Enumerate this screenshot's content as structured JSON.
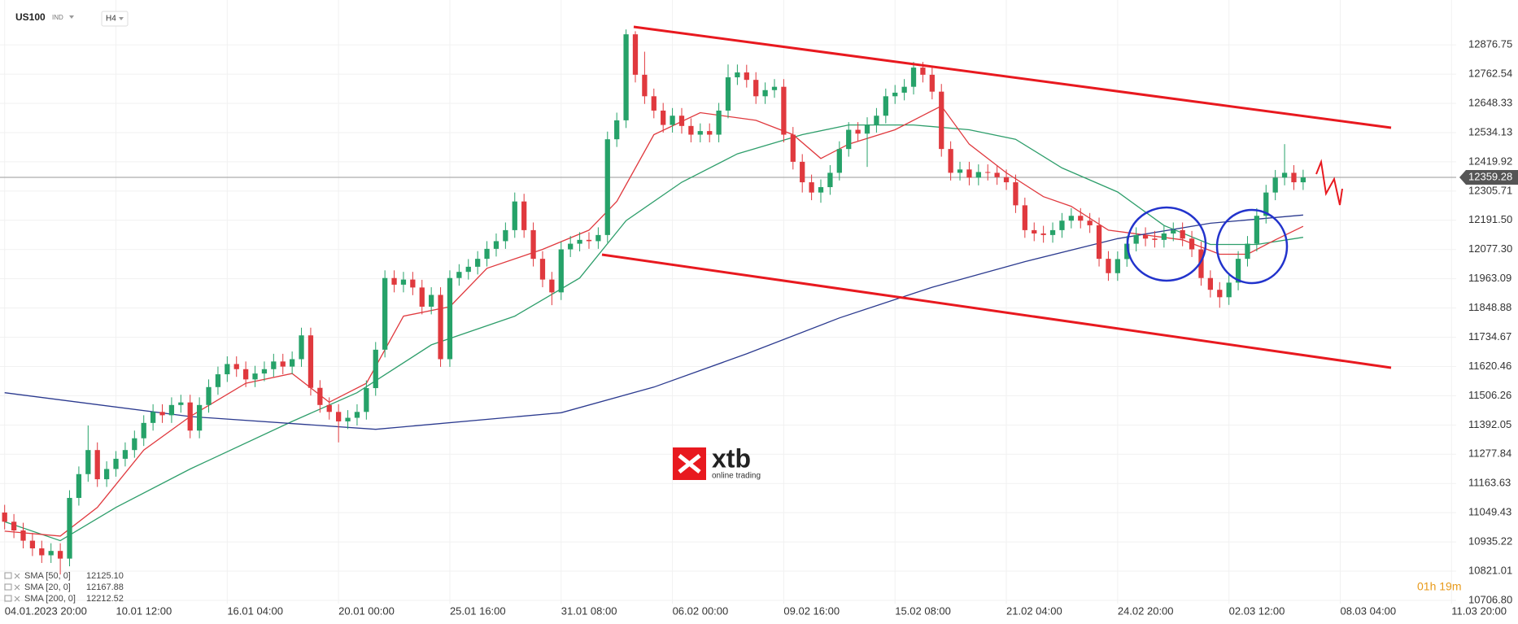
{
  "header": {
    "symbol": "US100",
    "market": "IND",
    "interval": "H4"
  },
  "logo": {
    "brand": "xtb",
    "tagline": "online trading"
  },
  "countdown": "01h 19m",
  "chart_data": {
    "type": "candlestick",
    "up_color": "#26a269",
    "down_color": "#e0393e",
    "open": [
      11050,
      11014,
      10980,
      10940,
      10910,
      10883,
      10900,
      10870,
      11107,
      11200,
      11294,
      11180,
      11220,
      11260,
      11294,
      11340,
      11400,
      11443,
      11430,
      11470,
      11480,
      11370,
      11470,
      11540,
      11590,
      11630,
      11610,
      11570,
      11593,
      11610,
      11640,
      11620,
      11649,
      11742,
      11537,
      11470,
      11443,
      11406,
      11420,
      11443,
      11536,
      11686,
      11966,
      11940,
      11960,
      11929,
      11854,
      11900,
      11649,
      11966,
      11990,
      12010,
      12041,
      12080,
      12110,
      12153,
      12265,
      12153,
      12041,
      11960,
      11910,
      12078,
      12100,
      12115,
      12110,
      12134,
      12508,
      12582,
      12918,
      12760,
      12676,
      12620,
      12564,
      12600,
      12560,
      12526,
      12540,
      12526,
      12620,
      12750,
      12769,
      12740,
      12676,
      12700,
      12713,
      12526,
      12420,
      12340,
      12300,
      12321,
      12377,
      12470,
      12545,
      12530,
      12564,
      12600,
      12676,
      12690,
      12713,
      12788,
      12760,
      12694,
      12470,
      12377,
      12390,
      12358,
      12380,
      12377,
      12360,
      12340,
      12250,
      12153,
      12140,
      12134,
      12153,
      12190,
      12209,
      12190,
      12172,
      12041,
      11985,
      12040,
      12100,
      12134,
      12120,
      12115,
      12140,
      12153,
      12120,
      12078,
      11966,
      11920,
      11891,
      11948,
      12041,
      12100,
      12209,
      12300,
      12358,
      12377,
      12340
    ],
    "high": [
      11080,
      11044,
      11010,
      10970,
      10940,
      10930,
      10930,
      11137,
      11230,
      11390,
      11324,
      11250,
      11290,
      11324,
      11370,
      11430,
      11473,
      11473,
      11500,
      11510,
      11510,
      11500,
      11570,
      11620,
      11660,
      11660,
      11640,
      11623,
      11640,
      11670,
      11670,
      11679,
      11772,
      11772,
      11567,
      11500,
      11473,
      11450,
      11473,
      11566,
      11716,
      11996,
      11996,
      11990,
      11990,
      11959,
      11930,
      11930,
      11996,
      12020,
      12040,
      12071,
      12110,
      12140,
      12183,
      12300,
      12295,
      12183,
      12071,
      11990,
      12108,
      12130,
      12145,
      12145,
      12164,
      12538,
      12612,
      12937,
      12930,
      12850,
      12706,
      12650,
      12630,
      12630,
      12590,
      12570,
      12570,
      12650,
      12800,
      12800,
      12799,
      12770,
      12730,
      12743,
      12743,
      12556,
      12450,
      12370,
      12351,
      12407,
      12500,
      12575,
      12575,
      12594,
      12630,
      12706,
      12720,
      12743,
      12810,
      12810,
      12790,
      12724,
      12500,
      12420,
      12420,
      12410,
      12410,
      12407,
      12390,
      12370,
      12280,
      12183,
      12170,
      12183,
      12220,
      12239,
      12239,
      12220,
      12202,
      12071,
      12070,
      12130,
      12164,
      12164,
      12150,
      12170,
      12183,
      12183,
      12150,
      12108,
      11996,
      11950,
      11978,
      12071,
      12130,
      12239,
      12330,
      12388,
      12489,
      12407,
      12389
    ],
    "low": [
      10984,
      10950,
      10910,
      10880,
      10853,
      10853,
      10808,
      10840,
      11077,
      11170,
      11150,
      11150,
      11190,
      11230,
      11264,
      11310,
      11370,
      11400,
      11400,
      11440,
      11340,
      11340,
      11440,
      11510,
      11560,
      11580,
      11540,
      11540,
      11563,
      11580,
      11590,
      11590,
      11619,
      11507,
      11440,
      11413,
      11324,
      11376,
      11390,
      11413,
      11506,
      11656,
      11910,
      11910,
      11899,
      11824,
      11824,
      11619,
      11619,
      11936,
      11960,
      11980,
      12011,
      12050,
      12080,
      12123,
      12123,
      12011,
      11930,
      11860,
      11880,
      12048,
      12070,
      12080,
      12080,
      12104,
      12478,
      12552,
      12730,
      12646,
      12590,
      12534,
      12534,
      12530,
      12496,
      12496,
      12496,
      12496,
      12590,
      12720,
      12710,
      12646,
      12646,
      12670,
      12496,
      12390,
      12300,
      12270,
      12260,
      12291,
      12347,
      12440,
      12500,
      12400,
      12534,
      12570,
      12646,
      12660,
      12683,
      12730,
      12664,
      12440,
      12347,
      12347,
      12328,
      12328,
      12347,
      12330,
      12310,
      12220,
      12123,
      12110,
      12104,
      12104,
      12123,
      12160,
      12160,
      12142,
      12011,
      11955,
      11955,
      12010,
      12070,
      12090,
      12085,
      12085,
      12110,
      12090,
      12048,
      11936,
      11890,
      11850,
      11861,
      11918,
      12011,
      12070,
      12179,
      12270,
      12328,
      12310,
      12310
    ],
    "close": [
      11014,
      10980,
      10940,
      10910,
      10883,
      10900,
      10870,
      11107,
      11200,
      11294,
      11180,
      11220,
      11260,
      11294,
      11340,
      11400,
      11443,
      11430,
      11470,
      11480,
      11370,
      11470,
      11540,
      11590,
      11630,
      11610,
      11570,
      11593,
      11610,
      11640,
      11620,
      11649,
      11742,
      11537,
      11470,
      11443,
      11406,
      11420,
      11443,
      11536,
      11686,
      11966,
      11940,
      11960,
      11929,
      11854,
      11900,
      11649,
      11966,
      11990,
      12010,
      12041,
      12080,
      12110,
      12153,
      12265,
      12153,
      12041,
      11960,
      11910,
      12078,
      12100,
      12115,
      12110,
      12134,
      12508,
      12582,
      12918,
      12760,
      12676,
      12620,
      12564,
      12600,
      12560,
      12526,
      12540,
      12526,
      12620,
      12750,
      12769,
      12740,
      12676,
      12700,
      12713,
      12526,
      12420,
      12340,
      12300,
      12321,
      12377,
      12470,
      12545,
      12530,
      12564,
      12600,
      12676,
      12690,
      12713,
      12788,
      12760,
      12694,
      12470,
      12377,
      12390,
      12358,
      12380,
      12377,
      12360,
      12340,
      12250,
      12153,
      12140,
      12134,
      12153,
      12190,
      12209,
      12190,
      12172,
      12041,
      11985,
      12040,
      12100,
      12134,
      12120,
      12115,
      12140,
      12153,
      12120,
      12078,
      11966,
      11920,
      11891,
      11948,
      12041,
      12100,
      12209,
      12300,
      12358,
      12377,
      12340,
      12359
    ],
    "series": [
      {
        "name": "SMA [50, 0]",
        "color": "#2e9e6b",
        "last": {
          "value": 12125.1,
          "label": "12125.10"
        },
        "x": [
          0,
          6,
          12,
          20,
          31,
          38,
          46,
          55,
          62,
          67,
          73,
          79,
          86,
          91,
          98,
          104,
          109,
          114,
          120,
          125,
          130,
          135,
          140
        ],
        "values": [
          11014,
          10940,
          11070,
          11220,
          11406,
          11518,
          11705,
          11817,
          11966,
          12190,
          12340,
          12451,
          12526,
          12564,
          12564,
          12545,
          12508,
          12396,
          12302,
          12171,
          12097,
          12097,
          12125
        ]
      },
      {
        "name": "SMA [20, 0]",
        "color": "#e0393e",
        "last": {
          "value": 12167.88,
          "label": "12167.88"
        },
        "x": [
          0,
          6,
          10,
          15,
          20,
          26,
          31,
          35,
          39,
          43,
          48,
          52,
          58,
          63,
          66,
          70,
          75,
          81,
          85,
          88,
          91,
          96,
          99,
          101,
          104,
          108,
          112,
          115,
          119,
          123,
          127,
          131,
          134,
          137,
          140
        ],
        "values": [
          10977,
          10958,
          11070,
          11294,
          11425,
          11555,
          11593,
          11481,
          11555,
          11817,
          11854,
          12004,
          12078,
          12153,
          12265,
          12526,
          12612,
          12582,
          12526,
          12433,
          12489,
          12545,
          12601,
          12638,
          12489,
          12377,
          12284,
          12246,
          12153,
          12134,
          12115,
          12059,
          12059,
          12115,
          12168
        ]
      },
      {
        "name": "SMA [200, 0]",
        "color": "#2b3a8f",
        "last": {
          "value": 12212.52,
          "label": "12212.52"
        },
        "x": [
          0,
          20,
          40,
          60,
          70,
          80,
          90,
          100,
          110,
          120,
          130,
          140
        ],
        "values": [
          11518,
          11425,
          11375,
          11440,
          11540,
          11670,
          11810,
          11930,
          12030,
          12120,
          12180,
          12212
        ]
      }
    ],
    "last_price": 12359.28,
    "xlim": [
      -0.5,
      156.5
    ],
    "xticks": [
      {
        "value": 0,
        "label": "04.01.2023  20:00"
      },
      {
        "value": 12,
        "label": "10.01  12:00"
      },
      {
        "value": 24,
        "label": "16.01  04:00"
      },
      {
        "value": 36,
        "label": "20.01  00:00"
      },
      {
        "value": 48,
        "label": "25.01  16:00"
      },
      {
        "value": 60,
        "label": "31.01  08:00"
      },
      {
        "value": 72,
        "label": "06.02  00:00"
      },
      {
        "value": 84,
        "label": "09.02  16:00"
      },
      {
        "value": 96,
        "label": "15.02  08:00"
      },
      {
        "value": 108,
        "label": "21.02  04:00"
      },
      {
        "value": 120,
        "label": "24.02  20:00"
      },
      {
        "value": 132,
        "label": "02.03  12:00"
      },
      {
        "value": 144,
        "label": "08.03  04:00"
      },
      {
        "value": 156,
        "label": "11.03  20:00"
      }
    ],
    "ylim": [
      10694,
      13052
    ],
    "yticks": [
      12876.75,
      12762.54,
      12648.33,
      12534.13,
      12419.92,
      12305.71,
      {
        "value": 12191.5,
        "label": "12191.50"
      },
      {
        "value": 12077.3,
        "label": "12077.30"
      },
      11963.09,
      11848.88,
      11734.67,
      11620.46,
      11506.26,
      11392.05,
      11277.84,
      11163.63,
      11049.43,
      10935.22,
      10821.01,
      {
        "value": 10706.8,
        "label": "10706.80"
      }
    ],
    "grid": true
  }
}
